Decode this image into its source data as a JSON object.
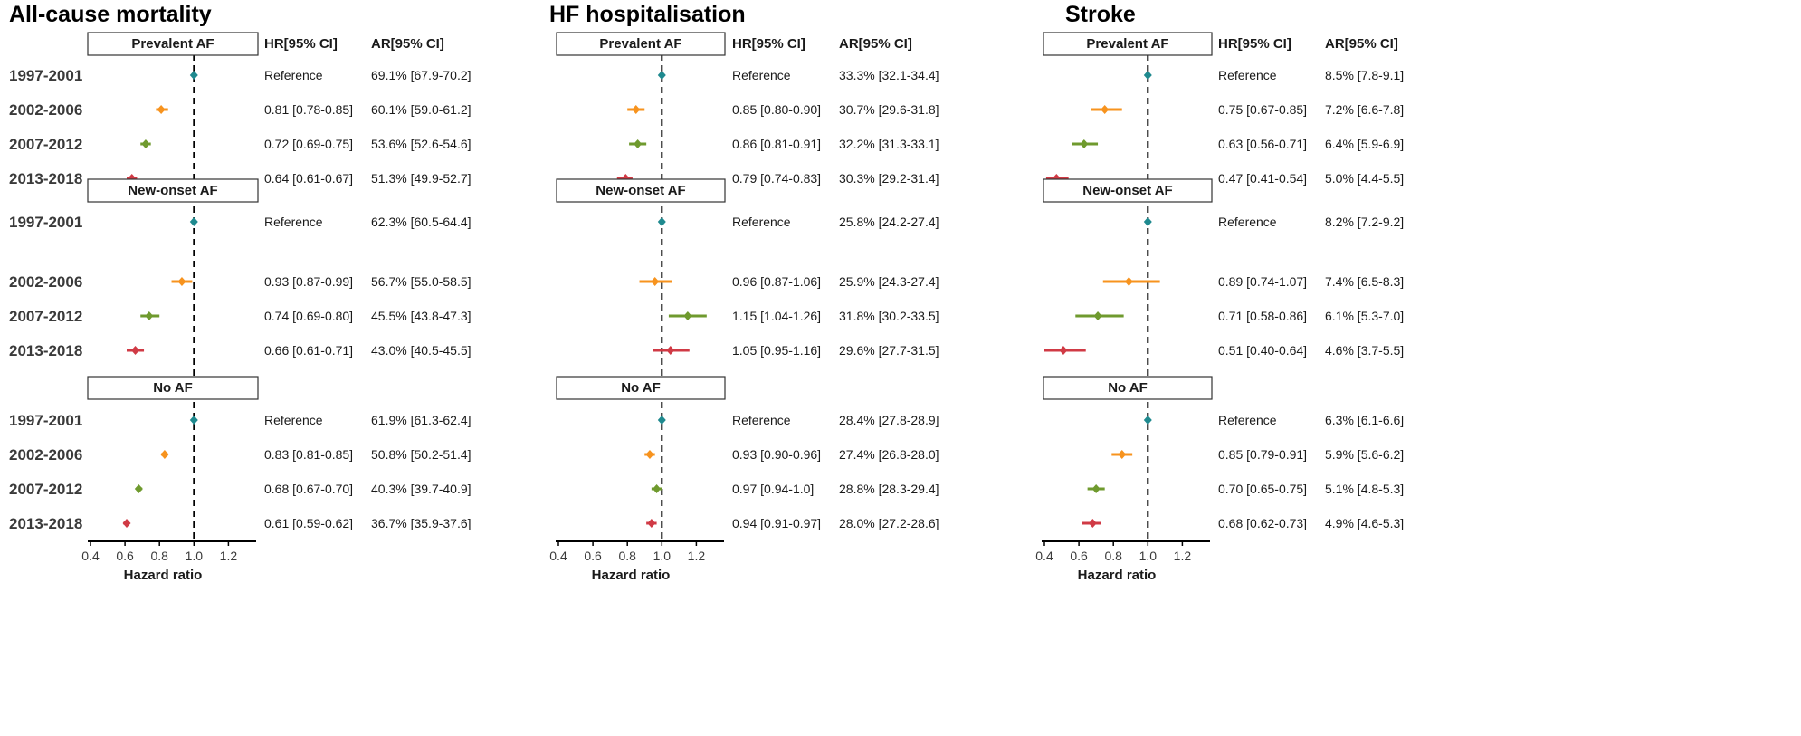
{
  "colors": {
    "p1": "#1f8a8f",
    "p2": "#f7931e",
    "p3": "#6f9a2e",
    "p4": "#d03a45",
    "axis": "#000000",
    "refline": "#000000"
  },
  "row_labels": [
    "1997-2001",
    "2002-2006",
    "2007-2012",
    "2013-2018"
  ],
  "group_titles": [
    "Prevalent AF",
    "New-onset AF",
    "No AF"
  ],
  "header_hr": "HR[95% CI]",
  "header_ar": "AR[95% CI]",
  "ticks": [
    "0.4",
    "0.6",
    "0.8",
    "1.0",
    "1.2"
  ],
  "xlabel": "Hazard ratio",
  "chart_data": [
    {
      "type": "scatter",
      "title": "All-cause mortality",
      "xlabel": "Hazard ratio",
      "xlim": [
        0.4,
        1.3
      ],
      "reference_line": 1.0,
      "groups": [
        {
          "name": "Prevalent AF",
          "rows": [
            {
              "period": "1997-2001",
              "hr": 1.0,
              "lo": 1.0,
              "hi": 1.0,
              "hr_text": "Reference",
              "ar_text": "69.1% [67.9-70.2]"
            },
            {
              "period": "2002-2006",
              "hr": 0.81,
              "lo": 0.78,
              "hi": 0.85,
              "hr_text": "0.81 [0.78-0.85]",
              "ar_text": "60.1% [59.0-61.2]"
            },
            {
              "period": "2007-2012",
              "hr": 0.72,
              "lo": 0.69,
              "hi": 0.75,
              "hr_text": "0.72 [0.69-0.75]",
              "ar_text": "53.6% [52.6-54.6]"
            },
            {
              "period": "2013-2018",
              "hr": 0.64,
              "lo": 0.61,
              "hi": 0.67,
              "hr_text": "0.64 [0.61-0.67]",
              "ar_text": "51.3% [49.9-52.7]"
            }
          ]
        },
        {
          "name": "New-onset AF",
          "rows": [
            {
              "period": "1997-2001",
              "hr": 1.0,
              "lo": 1.0,
              "hi": 1.0,
              "hr_text": "Reference",
              "ar_text": "62.3% [60.5-64.4]"
            },
            {
              "period": "2002-2006",
              "hr": 0.93,
              "lo": 0.87,
              "hi": 0.99,
              "hr_text": "0.93 [0.87-0.99]",
              "ar_text": "56.7% [55.0-58.5]"
            },
            {
              "period": "2007-2012",
              "hr": 0.74,
              "lo": 0.69,
              "hi": 0.8,
              "hr_text": "0.74 [0.69-0.80]",
              "ar_text": "45.5% [43.8-47.3]"
            },
            {
              "period": "2013-2018",
              "hr": 0.66,
              "lo": 0.61,
              "hi": 0.71,
              "hr_text": "0.66 [0.61-0.71]",
              "ar_text": "43.0% [40.5-45.5]"
            }
          ]
        },
        {
          "name": "No AF",
          "rows": [
            {
              "period": "1997-2001",
              "hr": 1.0,
              "lo": 1.0,
              "hi": 1.0,
              "hr_text": "Reference",
              "ar_text": "61.9% [61.3-62.4]"
            },
            {
              "period": "2002-2006",
              "hr": 0.83,
              "lo": 0.81,
              "hi": 0.85,
              "hr_text": "0.83 [0.81-0.85]",
              "ar_text": "50.8% [50.2-51.4]"
            },
            {
              "period": "2007-2012",
              "hr": 0.68,
              "lo": 0.67,
              "hi": 0.7,
              "hr_text": "0.68 [0.67-0.70]",
              "ar_text": "40.3% [39.7-40.9]"
            },
            {
              "period": "2013-2018",
              "hr": 0.61,
              "lo": 0.59,
              "hi": 0.62,
              "hr_text": "0.61 [0.59-0.62]",
              "ar_text": "36.7% [35.9-37.6]"
            }
          ]
        }
      ]
    },
    {
      "type": "scatter",
      "title": "HF hospitalisation",
      "xlabel": "Hazard ratio",
      "xlim": [
        0.4,
        1.3
      ],
      "reference_line": 1.0,
      "groups": [
        {
          "name": "Prevalent AF",
          "rows": [
            {
              "period": "1997-2001",
              "hr": 1.0,
              "lo": 1.0,
              "hi": 1.0,
              "hr_text": "Reference",
              "ar_text": "33.3% [32.1-34.4]"
            },
            {
              "period": "2002-2006",
              "hr": 0.85,
              "lo": 0.8,
              "hi": 0.9,
              "hr_text": "0.85 [0.80-0.90]",
              "ar_text": "30.7% [29.6-31.8]"
            },
            {
              "period": "2007-2012",
              "hr": 0.86,
              "lo": 0.81,
              "hi": 0.91,
              "hr_text": "0.86 [0.81-0.91]",
              "ar_text": "32.2% [31.3-33.1]"
            },
            {
              "period": "2013-2018",
              "hr": 0.79,
              "lo": 0.74,
              "hi": 0.83,
              "hr_text": "0.79 [0.74-0.83]",
              "ar_text": "30.3% [29.2-31.4]"
            }
          ]
        },
        {
          "name": "New-onset AF",
          "rows": [
            {
              "period": "1997-2001",
              "hr": 1.0,
              "lo": 1.0,
              "hi": 1.0,
              "hr_text": "Reference",
              "ar_text": "25.8% [24.2-27.4]"
            },
            {
              "period": "2002-2006",
              "hr": 0.96,
              "lo": 0.87,
              "hi": 1.06,
              "hr_text": "0.96 [0.87-1.06]",
              "ar_text": "25.9% [24.3-27.4]"
            },
            {
              "period": "2007-2012",
              "hr": 1.15,
              "lo": 1.04,
              "hi": 1.26,
              "hr_text": "1.15 [1.04-1.26]",
              "ar_text": "31.8% [30.2-33.5]"
            },
            {
              "period": "2013-2018",
              "hr": 1.05,
              "lo": 0.95,
              "hi": 1.16,
              "hr_text": "1.05 [0.95-1.16]",
              "ar_text": "29.6% [27.7-31.5]"
            }
          ]
        },
        {
          "name": "No AF",
          "rows": [
            {
              "period": "1997-2001",
              "hr": 1.0,
              "lo": 1.0,
              "hi": 1.0,
              "hr_text": "Reference",
              "ar_text": "28.4% [27.8-28.9]"
            },
            {
              "period": "2002-2006",
              "hr": 0.93,
              "lo": 0.9,
              "hi": 0.96,
              "hr_text": "0.93 [0.90-0.96]",
              "ar_text": "27.4% [26.8-28.0]"
            },
            {
              "period": "2007-2012",
              "hr": 0.97,
              "lo": 0.94,
              "hi": 1.0,
              "hr_text": "0.97 [0.94-1.0]",
              "ar_text": "28.8% [28.3-29.4]"
            },
            {
              "period": "2013-2018",
              "hr": 0.94,
              "lo": 0.91,
              "hi": 0.97,
              "hr_text": "0.94 [0.91-0.97]",
              "ar_text": "28.0% [27.2-28.6]"
            }
          ]
        }
      ]
    },
    {
      "type": "scatter",
      "title": "Stroke",
      "xlabel": "Hazard ratio",
      "xlim": [
        0.4,
        1.3
      ],
      "reference_line": 1.0,
      "groups": [
        {
          "name": "Prevalent AF",
          "rows": [
            {
              "period": "1997-2001",
              "hr": 1.0,
              "lo": 1.0,
              "hi": 1.0,
              "hr_text": "Reference",
              "ar_text": "8.5% [7.8-9.1]"
            },
            {
              "period": "2002-2006",
              "hr": 0.75,
              "lo": 0.67,
              "hi": 0.85,
              "hr_text": "0.75 [0.67-0.85]",
              "ar_text": "7.2% [6.6-7.8]"
            },
            {
              "period": "2007-2012",
              "hr": 0.63,
              "lo": 0.56,
              "hi": 0.71,
              "hr_text": "0.63 [0.56-0.71]",
              "ar_text": "6.4% [5.9-6.9]"
            },
            {
              "period": "2013-2018",
              "hr": 0.47,
              "lo": 0.41,
              "hi": 0.54,
              "hr_text": "0.47 [0.41-0.54]",
              "ar_text": "5.0% [4.4-5.5]"
            }
          ]
        },
        {
          "name": "New-onset AF",
          "rows": [
            {
              "period": "1997-2001",
              "hr": 1.0,
              "lo": 1.0,
              "hi": 1.0,
              "hr_text": "Reference",
              "ar_text": "8.2% [7.2-9.2]"
            },
            {
              "period": "2002-2006",
              "hr": 0.89,
              "lo": 0.74,
              "hi": 1.07,
              "hr_text": "0.89 [0.74-1.07]",
              "ar_text": "7.4% [6.5-8.3]"
            },
            {
              "period": "2007-2012",
              "hr": 0.71,
              "lo": 0.58,
              "hi": 0.86,
              "hr_text": "0.71 [0.58-0.86]",
              "ar_text": "6.1% [5.3-7.0]"
            },
            {
              "period": "2013-2018",
              "hr": 0.51,
              "lo": 0.4,
              "hi": 0.64,
              "hr_text": "0.51 [0.40-0.64]",
              "ar_text": "4.6% [3.7-5.5]"
            }
          ]
        },
        {
          "name": "No AF",
          "rows": [
            {
              "period": "1997-2001",
              "hr": 1.0,
              "lo": 1.0,
              "hi": 1.0,
              "hr_text": "Reference",
              "ar_text": "6.3% [6.1-6.6]"
            },
            {
              "period": "2002-2006",
              "hr": 0.85,
              "lo": 0.79,
              "hi": 0.91,
              "hr_text": "0.85 [0.79-0.91]",
              "ar_text": "5.9% [5.6-6.2]"
            },
            {
              "period": "2007-2012",
              "hr": 0.7,
              "lo": 0.65,
              "hi": 0.75,
              "hr_text": "0.70 [0.65-0.75]",
              "ar_text": "5.1% [4.8-5.3]"
            },
            {
              "period": "2013-2018",
              "hr": 0.68,
              "lo": 0.62,
              "hi": 0.73,
              "hr_text": "0.68 [0.62-0.73]",
              "ar_text": "4.9% [4.6-5.3]"
            }
          ]
        }
      ]
    }
  ]
}
